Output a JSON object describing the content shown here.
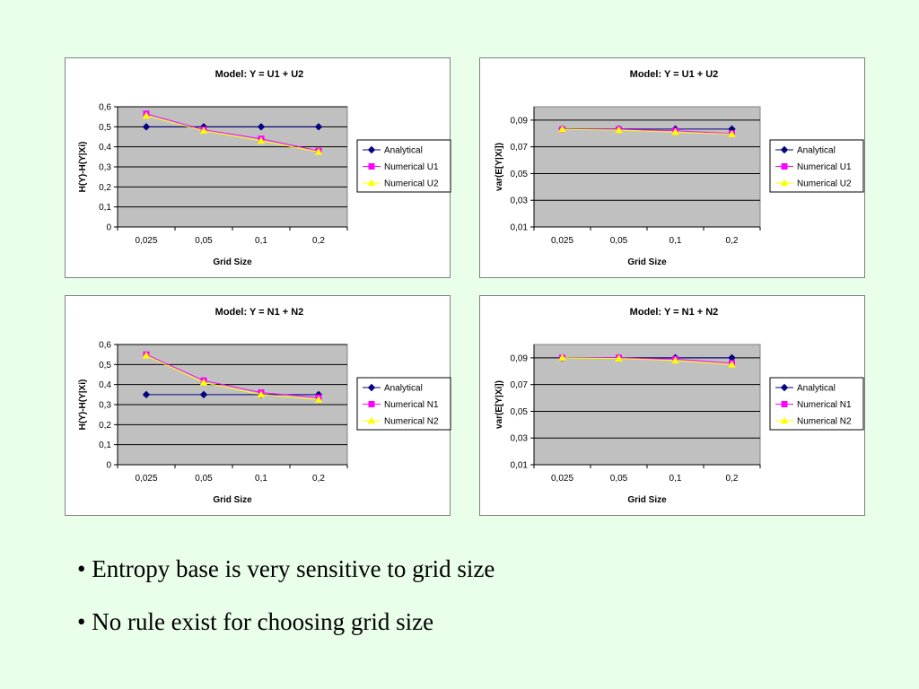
{
  "chart_data": [
    {
      "type": "line",
      "title": "Model: Y = U1 + U2",
      "xlabel": "Grid Size",
      "ylabel": "H(Y)-H(Y|Xi)",
      "categories": [
        "0,025",
        "0,05",
        "0,1",
        "0,2"
      ],
      "yticks": [
        "0",
        "0,1",
        "0,2",
        "0,3",
        "0,4",
        "0,5",
        "0,6"
      ],
      "ylim": [
        0,
        0.6
      ],
      "grid": true,
      "legend_position": "right",
      "series": [
        {
          "name": "Analytical",
          "values": [
            0.5,
            0.5,
            0.5,
            0.5
          ],
          "color": "#000080",
          "marker": "diamond"
        },
        {
          "name": "Numerical U1",
          "values": [
            0.565,
            0.485,
            0.44,
            0.38
          ],
          "color": "#ff00ff",
          "marker": "square"
        },
        {
          "name": "Numerical U2",
          "values": [
            0.555,
            0.48,
            0.43,
            0.375
          ],
          "color": "#ffff00",
          "marker": "triangle"
        }
      ]
    },
    {
      "type": "line",
      "title": "Model: Y = U1 + U2",
      "xlabel": "Grid Size",
      "ylabel": "var(E[Y|Xi])",
      "categories": [
        "0,025",
        "0,05",
        "0,1",
        "0,2"
      ],
      "yticks": [
        "0,01",
        "0,03",
        "0,05",
        "0,07",
        "0,09"
      ],
      "ylim": [
        0.01,
        0.1
      ],
      "grid": true,
      "legend_position": "right",
      "series": [
        {
          "name": "Analytical",
          "values": [
            0.0833,
            0.0833,
            0.0833,
            0.0833
          ],
          "color": "#000080",
          "marker": "diamond"
        },
        {
          "name": "Numerical U1",
          "values": [
            0.083,
            0.083,
            0.082,
            0.08
          ],
          "color": "#ff00ff",
          "marker": "square"
        },
        {
          "name": "Numerical U2",
          "values": [
            0.083,
            0.0825,
            0.081,
            0.0795
          ],
          "color": "#ffff00",
          "marker": "triangle"
        }
      ]
    },
    {
      "type": "line",
      "title": "Model: Y = N1 + N2",
      "xlabel": "Grid Size",
      "ylabel": "H(Y)-H(Y|Xi)",
      "categories": [
        "0,025",
        "0,05",
        "0,1",
        "0,2"
      ],
      "yticks": [
        "0",
        "0,1",
        "0,2",
        "0,3",
        "0,4",
        "0,5",
        "0,6"
      ],
      "ylim": [
        0,
        0.6
      ],
      "grid": true,
      "legend_position": "right",
      "series": [
        {
          "name": "Analytical",
          "values": [
            0.35,
            0.35,
            0.35,
            0.35
          ],
          "color": "#000080",
          "marker": "diamond"
        },
        {
          "name": "Numerical N1",
          "values": [
            0.55,
            0.42,
            0.36,
            0.335
          ],
          "color": "#ff00ff",
          "marker": "square"
        },
        {
          "name": "Numerical N2",
          "values": [
            0.545,
            0.41,
            0.35,
            0.325
          ],
          "color": "#ffff00",
          "marker": "triangle"
        }
      ]
    },
    {
      "type": "line",
      "title": "Model: Y = N1 + N2",
      "xlabel": "Grid Size",
      "ylabel": "var(E[Y|Xi])",
      "categories": [
        "0,025",
        "0,05",
        "0,1",
        "0,2"
      ],
      "yticks": [
        "0,01",
        "0,03",
        "0,05",
        "0,07",
        "0,09"
      ],
      "ylim": [
        0.01,
        0.1
      ],
      "grid": true,
      "legend_position": "right",
      "series": [
        {
          "name": "Analytical",
          "values": [
            0.09,
            0.09,
            0.09,
            0.09
          ],
          "color": "#000080",
          "marker": "diamond"
        },
        {
          "name": "Numerical N1",
          "values": [
            0.09,
            0.09,
            0.089,
            0.086
          ],
          "color": "#ff00ff",
          "marker": "square"
        },
        {
          "name": "Numerical N2",
          "values": [
            0.09,
            0.0895,
            0.088,
            0.085
          ],
          "color": "#ffff00",
          "marker": "triangle"
        }
      ]
    }
  ],
  "colors": {
    "page_background": "#eaffea",
    "plot_area": "#c0c0c0",
    "gridline": "#000000"
  },
  "bullets": [
    "• Entropy base is very sensitive to grid size",
    "• No rule exist for choosing grid size"
  ]
}
